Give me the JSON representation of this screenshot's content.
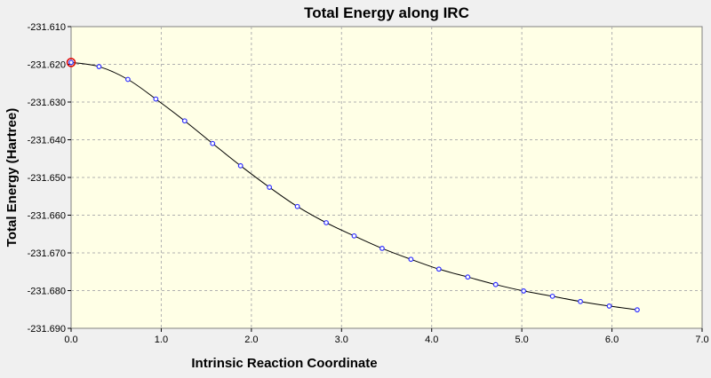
{
  "chart_data": {
    "type": "line",
    "title": "Total Energy along IRC",
    "xlabel": "Intrinsic Reaction Coordinate",
    "ylabel": "Total Energy (Hartree)",
    "xlim": [
      0.0,
      7.0
    ],
    "ylim": [
      -231.69,
      -231.61
    ],
    "xticks": [
      "0.0",
      "1.0",
      "2.0",
      "3.0",
      "4.0",
      "5.0",
      "6.0",
      "7.0"
    ],
    "yticks": [
      "-231.610",
      "-231.620",
      "-231.630",
      "-231.640",
      "-231.650",
      "-231.660",
      "-231.670",
      "-231.680",
      "-231.690"
    ],
    "grid": true,
    "highlighted_point_index": 0,
    "series": [
      {
        "x": [
          0.0,
          0.31,
          0.63,
          0.94,
          1.26,
          1.57,
          1.88,
          2.2,
          2.51,
          2.83,
          3.14,
          3.45,
          3.77,
          4.08,
          4.4,
          4.71,
          5.02,
          5.34,
          5.65,
          5.97,
          6.28
        ],
        "y": [
          -231.6195,
          -231.6206,
          -231.624,
          -231.6292,
          -231.635,
          -231.641,
          -231.6469,
          -231.6526,
          -231.6577,
          -231.662,
          -231.6655,
          -231.6688,
          -231.6717,
          -231.6743,
          -231.6764,
          -231.6784,
          -231.6801,
          -231.6815,
          -231.6829,
          -231.6841,
          -231.6851
        ]
      }
    ]
  }
}
